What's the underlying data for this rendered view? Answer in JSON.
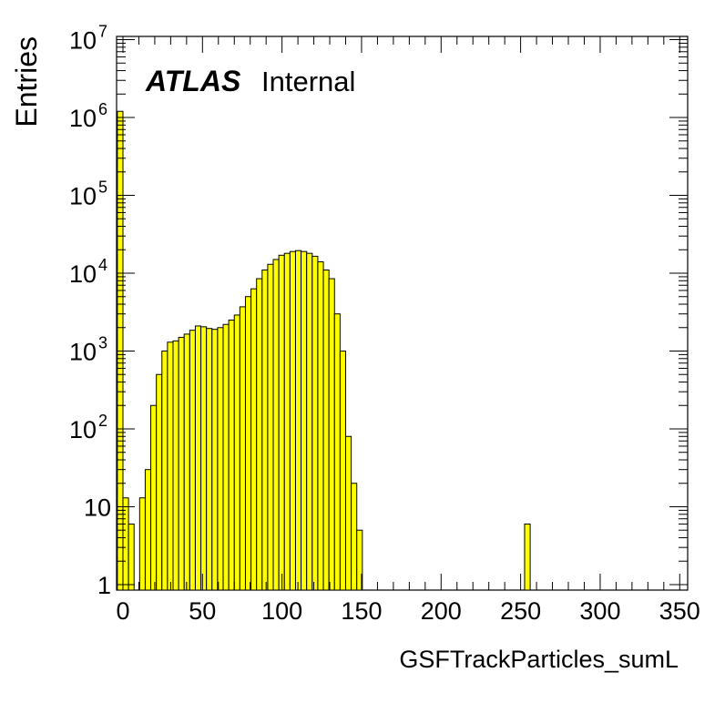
{
  "chart_data": {
    "type": "bar",
    "xlabel": "GSFTrackParticles_sumL",
    "ylabel": "Entries",
    "title": "",
    "annotation": {
      "experiment": "ATLAS",
      "status": "Internal"
    },
    "fill_color": "#ffff00",
    "line_color": "#000000",
    "xlim": [
      -4,
      355
    ],
    "ylim": [
      0.85,
      11000000
    ],
    "yscale": "log",
    "x_ticks": [
      0,
      50,
      100,
      150,
      200,
      250,
      300,
      350
    ],
    "x_tick_labels": [
      "0",
      "50",
      "100",
      "150",
      "200",
      "250",
      "300",
      "350"
    ],
    "y_tick_labels": [
      {
        "value": 1,
        "base": "1",
        "exp": ""
      },
      {
        "value": 10,
        "base": "10",
        "exp": ""
      },
      {
        "value": 100,
        "base": "10",
        "exp": "2"
      },
      {
        "value": 1000,
        "base": "10",
        "exp": "3"
      },
      {
        "value": 10000,
        "base": "10",
        "exp": "4"
      },
      {
        "value": 100000,
        "base": "10",
        "exp": "5"
      },
      {
        "value": 1000000,
        "base": "10",
        "exp": "6"
      },
      {
        "value": 10000000,
        "base": "10",
        "exp": "7"
      }
    ],
    "bin_width": 3.5,
    "bins_start": [
      -3.5,
      0,
      3.5,
      7,
      10.5,
      14,
      17.5,
      21,
      24.5,
      28,
      31.5,
      35,
      38.5,
      42,
      45.5,
      49,
      52.5,
      56,
      59.5,
      63,
      66.5,
      70,
      73.5,
      77,
      80.5,
      84,
      87.5,
      91,
      94.5,
      98,
      101.5,
      105,
      108.5,
      112,
      115.5,
      119,
      122.5,
      126,
      129.5,
      133,
      136.5,
      140,
      143.5,
      147,
      150.5,
      154,
      157.5,
      161,
      164.5,
      168,
      171.5,
      175,
      252.5
    ],
    "values": [
      1200000,
      13,
      6,
      0,
      13,
      30,
      200,
      500,
      1000,
      1300,
      1350,
      1500,
      1650,
      1850,
      2100,
      2050,
      1950,
      1900,
      2000,
      2200,
      2500,
      2900,
      3700,
      5000,
      6300,
      8500,
      11000,
      13000,
      15000,
      17000,
      18000,
      19000,
      19500,
      19000,
      18000,
      16500,
      14000,
      11000,
      8500,
      3000,
      1000,
      80,
      20,
      5,
      0,
      0,
      0,
      0,
      0,
      0,
      0,
      0,
      6
    ]
  }
}
